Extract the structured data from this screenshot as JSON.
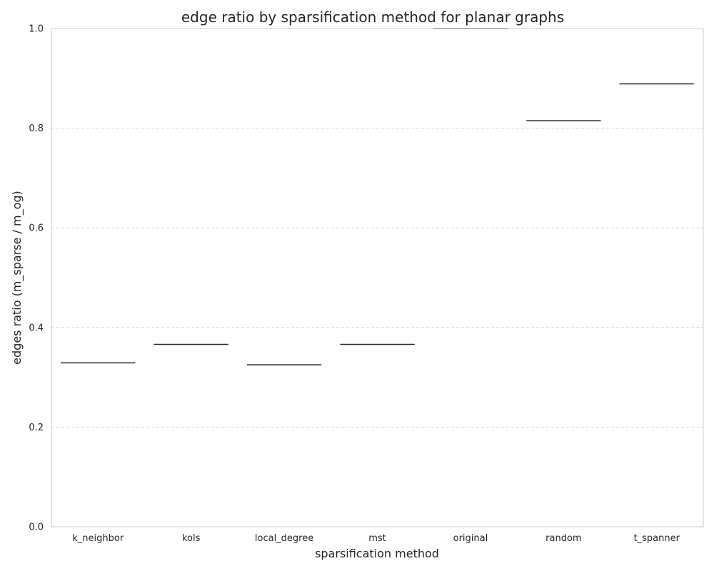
{
  "chart_data": {
    "type": "box",
    "title": "edge ratio by sparsification method for planar graphs",
    "xlabel": "sparsification method",
    "ylabel": "edges ratio (m_sparse / m_og)",
    "ylim": [
      0,
      1.0
    ],
    "yticks": [
      "0.0",
      "0.2",
      "0.4",
      "0.6",
      "0.8",
      "1.0"
    ],
    "categories": [
      "k_neighbor",
      "kols",
      "local_degree",
      "mst",
      "original",
      "random",
      "t_spanner"
    ],
    "values": [
      0.329,
      0.366,
      0.325,
      0.366,
      1.0,
      0.815,
      0.889
    ],
    "grid": "horizontal, dashed",
    "median_color": "#262626",
    "grid_color": "#d9d9d9",
    "spine_color": "#cccccc"
  }
}
